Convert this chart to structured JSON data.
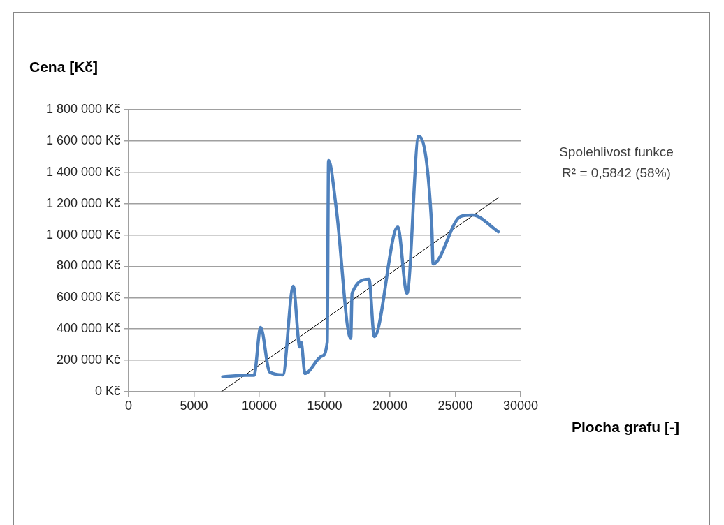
{
  "chart_data": {
    "type": "line",
    "xlabel": "Plocha grafu [-]",
    "ylabel": "Cena [Kč]",
    "annotations": [
      "Spolehlivost funkce",
      "R² = 0,5842 (58%)"
    ],
    "xlim": [
      0,
      30000
    ],
    "xticks": [
      0,
      5000,
      10000,
      15000,
      20000,
      25000,
      30000
    ],
    "ylim": [
      0,
      1800000
    ],
    "yticks": [
      {
        "value": 0,
        "label": "0 Kč"
      },
      {
        "value": 200000,
        "label": "200 000 Kč"
      },
      {
        "value": 400000,
        "label": "400 000 Kč"
      },
      {
        "value": 600000,
        "label": "600 000 Kč"
      },
      {
        "value": 800000,
        "label": "800 000 Kč"
      },
      {
        "value": 1000000,
        "label": "1 000 000 Kč"
      },
      {
        "value": 1200000,
        "label": "1 200 000 Kč"
      },
      {
        "value": 1400000,
        "label": "1 400 000 Kč"
      },
      {
        "value": 1600000,
        "label": "1 600 000 Kč"
      },
      {
        "value": 1800000,
        "label": "1 800 000 Kč"
      }
    ],
    "grid": "y",
    "legend": false,
    "marker": "none",
    "series": [
      {
        "color": "#4f81bd",
        "x": [
          7200,
          9000,
          9600,
          10100,
          10800,
          11800,
          12600,
          13100,
          13200,
          13500,
          14800,
          15200,
          15300,
          15900,
          17000,
          17100,
          18400,
          18800,
          20600,
          21300,
          22200,
          23200,
          23300,
          25400,
          26300,
          28300
        ],
        "values": [
          95000,
          105000,
          105000,
          410000,
          125000,
          107000,
          673000,
          285000,
          315000,
          116000,
          227000,
          316000,
          1475000,
          1163000,
          340000,
          628000,
          717000,
          352000,
          1050000,
          628000,
          1630000,
          1050000,
          815000,
          1118000,
          1127000,
          1020000
        ]
      },
      {
        "type": "line",
        "color": "#000000",
        "x": [
          7100,
          28300
        ],
        "values": [
          0,
          1238000
        ]
      }
    ]
  }
}
